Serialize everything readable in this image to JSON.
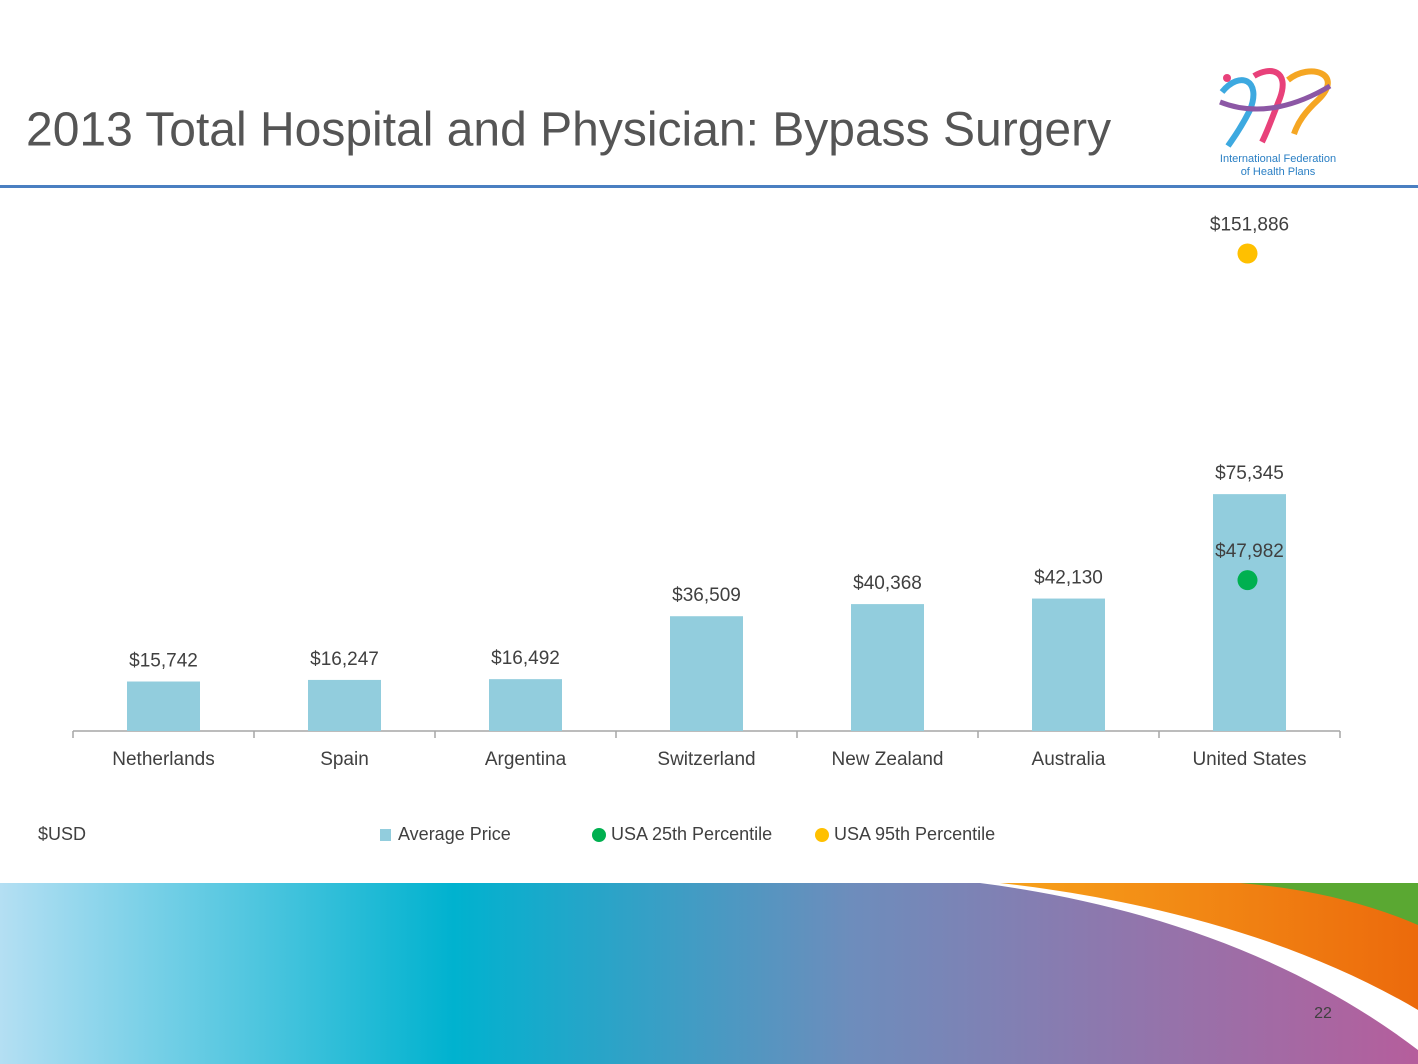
{
  "chart_data": {
    "type": "bar",
    "title": "2013 Total Hospital and Physician: Bypass Surgery",
    "y_label": "$USD",
    "categories": [
      "Netherlands",
      "Spain",
      "Argentina",
      "Switzerland",
      "New Zealand",
      "Australia",
      "United States"
    ],
    "series": [
      {
        "name": "Average Price",
        "type": "bar",
        "color": "#92cddd",
        "values": [
          15742,
          16247,
          16492,
          36509,
          40368,
          42130,
          75345
        ],
        "value_labels": [
          "$15,742",
          "$16,247",
          "$16,492",
          "$36,509",
          "$40,368",
          "$42,130",
          "$75,345"
        ]
      },
      {
        "name": "USA 25th Percentile",
        "type": "scatter",
        "color": "#00b050",
        "values": [
          null,
          null,
          null,
          null,
          null,
          null,
          47982
        ],
        "value_labels": [
          null,
          null,
          null,
          null,
          null,
          null,
          "$47,982"
        ]
      },
      {
        "name": "USA 95th Percentile",
        "type": "scatter",
        "color": "#ffc000",
        "values": [
          null,
          null,
          null,
          null,
          null,
          null,
          151886
        ],
        "value_labels": [
          null,
          null,
          null,
          null,
          null,
          null,
          "$151,886"
        ]
      }
    ],
    "ylim": [
      0,
      160000
    ]
  },
  "slide": {
    "page_number": "22",
    "logo_line1": "International Federation",
    "logo_line2": "of Health Plans"
  }
}
